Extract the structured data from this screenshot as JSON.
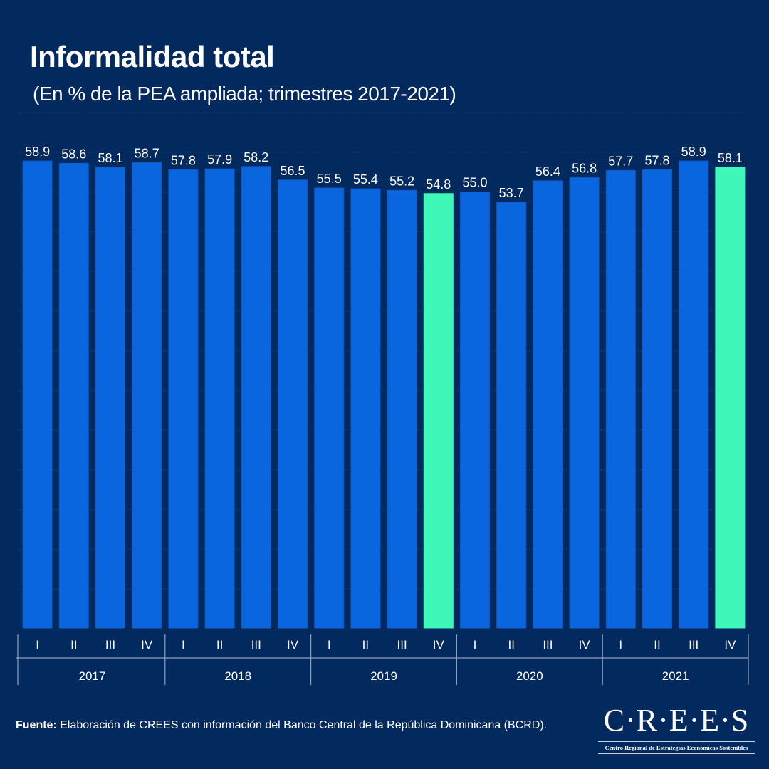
{
  "title": "Informalidad total",
  "subtitle": "(En % de la PEA ampliada; trimestres 2017-2021)",
  "source": {
    "label": "Fuente:",
    "text": " Elaboración de CREES con información del Banco Central de la República Dominicana (BCRD)."
  },
  "logo": {
    "name": "C·R·E·E·S",
    "tagline": "Centro Regional de Estrategias Económicas Sostenibles"
  },
  "colors": {
    "background": "#032a5e",
    "bar": "#0a66de",
    "highlight": "#3ef7b8",
    "text": "#ffffff",
    "axis": "#8fa1bd"
  },
  "chart_data": {
    "type": "bar",
    "title": "Informalidad total",
    "subtitle": "(En % de la PEA ampliada; trimestres 2017-2021)",
    "xlabel": "",
    "ylabel": "",
    "ylim": [
      0,
      65
    ],
    "grid": true,
    "categories": [
      "2017-I",
      "2017-II",
      "2017-III",
      "2017-IV",
      "2018-I",
      "2018-II",
      "2018-III",
      "2018-IV",
      "2019-I",
      "2019-II",
      "2019-III",
      "2019-IV",
      "2020-I",
      "2020-II",
      "2020-III",
      "2020-IV",
      "2021-I",
      "2021-II",
      "2021-III",
      "2021-IV"
    ],
    "quarter_labels": [
      "I",
      "II",
      "III",
      "IV",
      "I",
      "II",
      "III",
      "IV",
      "I",
      "II",
      "III",
      "IV",
      "I",
      "II",
      "III",
      "IV",
      "I",
      "II",
      "III",
      "IV"
    ],
    "year_labels": [
      "2017",
      "2018",
      "2019",
      "2020",
      "2021"
    ],
    "values": [
      58.9,
      58.6,
      58.1,
      58.7,
      57.8,
      57.9,
      58.2,
      56.5,
      55.5,
      55.4,
      55.2,
      54.8,
      55.0,
      53.7,
      56.4,
      56.8,
      57.7,
      57.8,
      58.9,
      58.1
    ],
    "data_labels": [
      "58.9",
      "58.6",
      "58.1",
      "58.7",
      "57.8",
      "57.9",
      "58.2",
      "56.5",
      "55.5",
      "55.4",
      "55.2",
      "54.8",
      "55.0",
      "53.7",
      "56.4",
      "56.8",
      "57.7",
      "57.8",
      "58.9",
      "58.1"
    ],
    "highlighted": [
      "2019-IV",
      "2021-IV"
    ]
  }
}
